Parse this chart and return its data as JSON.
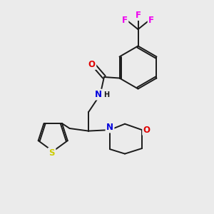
{
  "bg_color": "#ebebeb",
  "bond_color": "#1a1a1a",
  "bond_width": 1.4,
  "atom_colors": {
    "O": "#e00000",
    "N": "#0000dd",
    "S": "#cccc00",
    "F": "#ee00ee",
    "C": "#1a1a1a",
    "H": "#1a1a1a"
  },
  "font_size_atom": 8.5,
  "font_size_H": 7.0
}
